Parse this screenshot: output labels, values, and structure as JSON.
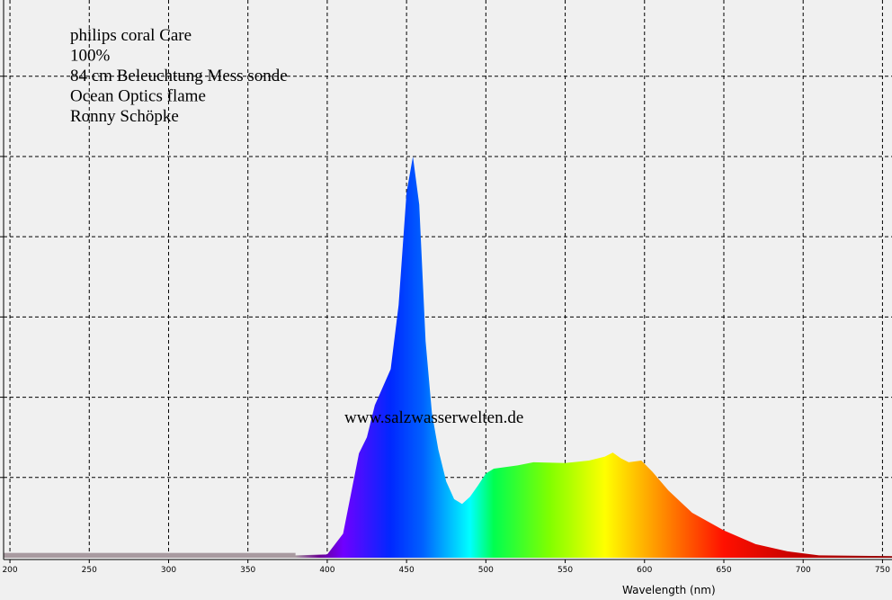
{
  "chart_data": {
    "type": "area",
    "annotations": [
      "philips coral Care",
      "100%",
      "84 cm Beleuchtung Mess sonde",
      "Ocean Optics flame",
      "Ronny Schöpke"
    ],
    "watermark": "www.salzwasserwelten.de",
    "x_label": "Wavelength (nm)",
    "x": [
      200,
      380,
      400,
      410,
      420,
      425,
      430,
      440,
      445,
      450,
      454,
      458,
      462,
      466,
      470,
      475,
      480,
      485,
      490,
      495,
      500,
      505,
      520,
      530,
      550,
      565,
      575,
      580,
      585,
      590,
      598,
      605,
      615,
      630,
      650,
      670,
      690,
      710,
      756
    ],
    "y": [
      0.03,
      0.03,
      0.04,
      0.3,
      1.3,
      1.5,
      1.9,
      2.35,
      3.15,
      4.55,
      5.0,
      4.4,
      2.7,
      1.8,
      1.35,
      0.95,
      0.73,
      0.67,
      0.76,
      0.9,
      1.05,
      1.11,
      1.15,
      1.19,
      1.18,
      1.21,
      1.26,
      1.31,
      1.24,
      1.19,
      1.21,
      1.07,
      0.84,
      0.56,
      0.34,
      0.17,
      0.08,
      0.03,
      0.02
    ],
    "xlim": [
      196,
      756
    ],
    "xticks": [
      200,
      250,
      300,
      350,
      400,
      450,
      500,
      550,
      600,
      650,
      700,
      750
    ],
    "ylim": [
      0,
      6.95
    ],
    "yticks": [
      1,
      2,
      3,
      4,
      5,
      6
    ],
    "grid": true
  }
}
